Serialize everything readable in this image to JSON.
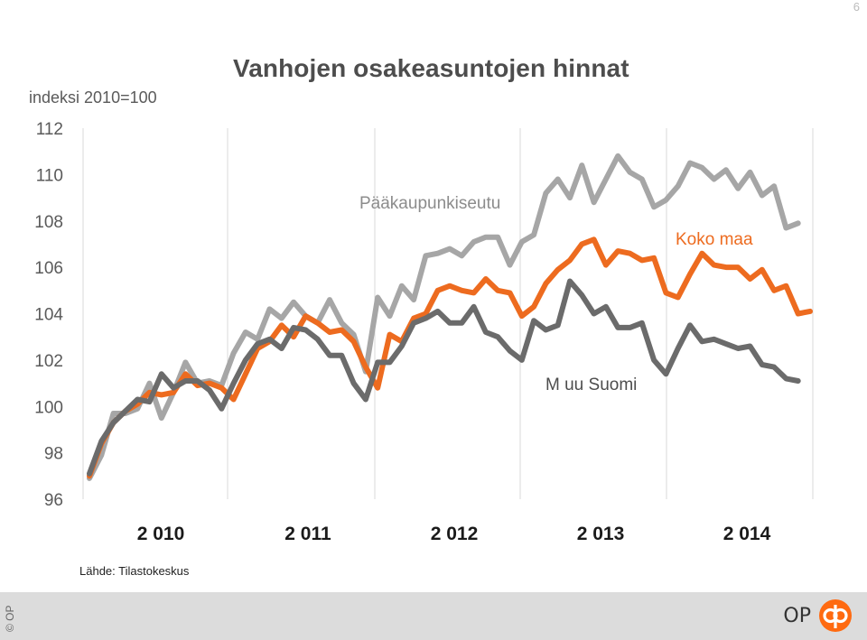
{
  "page_number": "6",
  "footer": {
    "copyright": "© OP",
    "logo_text": "OP"
  },
  "source_note": "Lähde: Tilastokeskus",
  "colors": {
    "pk": "#a6a6a6",
    "koko": "#ed6b1f",
    "muu": "#6b6b6b",
    "grid": "#d9d9d9",
    "logo": "#ff6a10"
  },
  "chart_data": {
    "type": "line",
    "title": "Vanhojen osakeasuntojen hinnat",
    "ylabel": "indeksi 2010=100",
    "xlabel": "",
    "ylim": [
      96,
      112
    ],
    "yticks": [
      96,
      98,
      100,
      102,
      104,
      106,
      108,
      110,
      112
    ],
    "year_ticks": [
      "2 010",
      "2 011",
      "2 012",
      "2 013",
      "2 014"
    ],
    "grid": "vertical",
    "series": [
      {
        "name": "Pääkaupunkiseutu",
        "color": "#a6a6a6",
        "values": [
          96.9,
          97.9,
          99.7,
          99.7,
          99.9,
          101.0,
          99.5,
          100.6,
          101.9,
          101.0,
          101.1,
          100.9,
          102.3,
          103.2,
          102.9,
          104.2,
          103.8,
          104.5,
          103.9,
          103.6,
          104.6,
          103.6,
          103.1,
          101.5,
          104.7,
          103.9,
          105.2,
          104.6,
          106.5,
          106.6,
          106.8,
          106.5,
          107.1,
          107.3,
          107.3,
          106.1,
          107.1,
          107.4,
          109.2,
          109.8,
          109.0,
          110.4,
          108.8,
          109.8,
          110.8,
          110.1,
          109.8,
          108.6,
          108.9,
          109.5,
          110.5,
          110.3,
          109.8,
          110.2,
          109.4,
          110.1,
          109.1,
          109.5,
          107.7,
          107.9
        ]
      },
      {
        "name": "Koko maa",
        "color": "#ed6b1f",
        "values": [
          97.0,
          98.4,
          99.3,
          99.8,
          100.1,
          100.6,
          100.5,
          100.6,
          101.4,
          100.9,
          101.0,
          100.8,
          100.3,
          101.4,
          102.5,
          102.8,
          103.5,
          103.0,
          103.9,
          103.6,
          103.2,
          103.3,
          102.8,
          101.7,
          100.8,
          103.1,
          102.8,
          103.8,
          104.0,
          105.0,
          105.2,
          105.0,
          104.9,
          105.5,
          105.0,
          104.9,
          103.9,
          104.3,
          105.3,
          105.9,
          106.3,
          107.0,
          107.2,
          106.1,
          106.7,
          106.6,
          106.3,
          106.4,
          104.9,
          104.7,
          105.7,
          106.6,
          106.1,
          106.0,
          106.0,
          105.5,
          105.9,
          105.0,
          105.2,
          104.0,
          104.1
        ]
      },
      {
        "name": "Muu Suomi",
        "color": "#6b6b6b",
        "values": [
          97.1,
          98.5,
          99.3,
          99.8,
          100.3,
          100.2,
          101.4,
          100.8,
          101.1,
          101.1,
          100.7,
          99.9,
          101.0,
          102.0,
          102.7,
          102.9,
          102.5,
          103.4,
          103.3,
          102.9,
          102.2,
          102.2,
          101.0,
          100.3,
          101.9,
          101.9,
          102.6,
          103.6,
          103.8,
          104.1,
          103.6,
          103.6,
          104.3,
          103.2,
          103.0,
          102.4,
          102.0,
          103.7,
          103.3,
          103.5,
          105.4,
          104.8,
          104.0,
          104.3,
          103.4,
          103.4,
          103.6,
          102.0,
          101.4,
          102.5,
          103.5,
          102.8,
          102.9,
          102.7,
          102.5,
          102.6,
          101.8,
          101.7,
          101.2,
          101.1
        ]
      }
    ],
    "annotations": [
      {
        "text": "Pääkaupunkiseutu",
        "series": "Pääkaupunkiseutu",
        "index": 31,
        "value": 108.9
      },
      {
        "text": "Koko maa",
        "series": "Koko maa",
        "index": 56,
        "value": 107.2
      },
      {
        "text": "M uu Suomi",
        "series": "Muu Suomi",
        "index": 41,
        "value": 100.9
      }
    ]
  }
}
